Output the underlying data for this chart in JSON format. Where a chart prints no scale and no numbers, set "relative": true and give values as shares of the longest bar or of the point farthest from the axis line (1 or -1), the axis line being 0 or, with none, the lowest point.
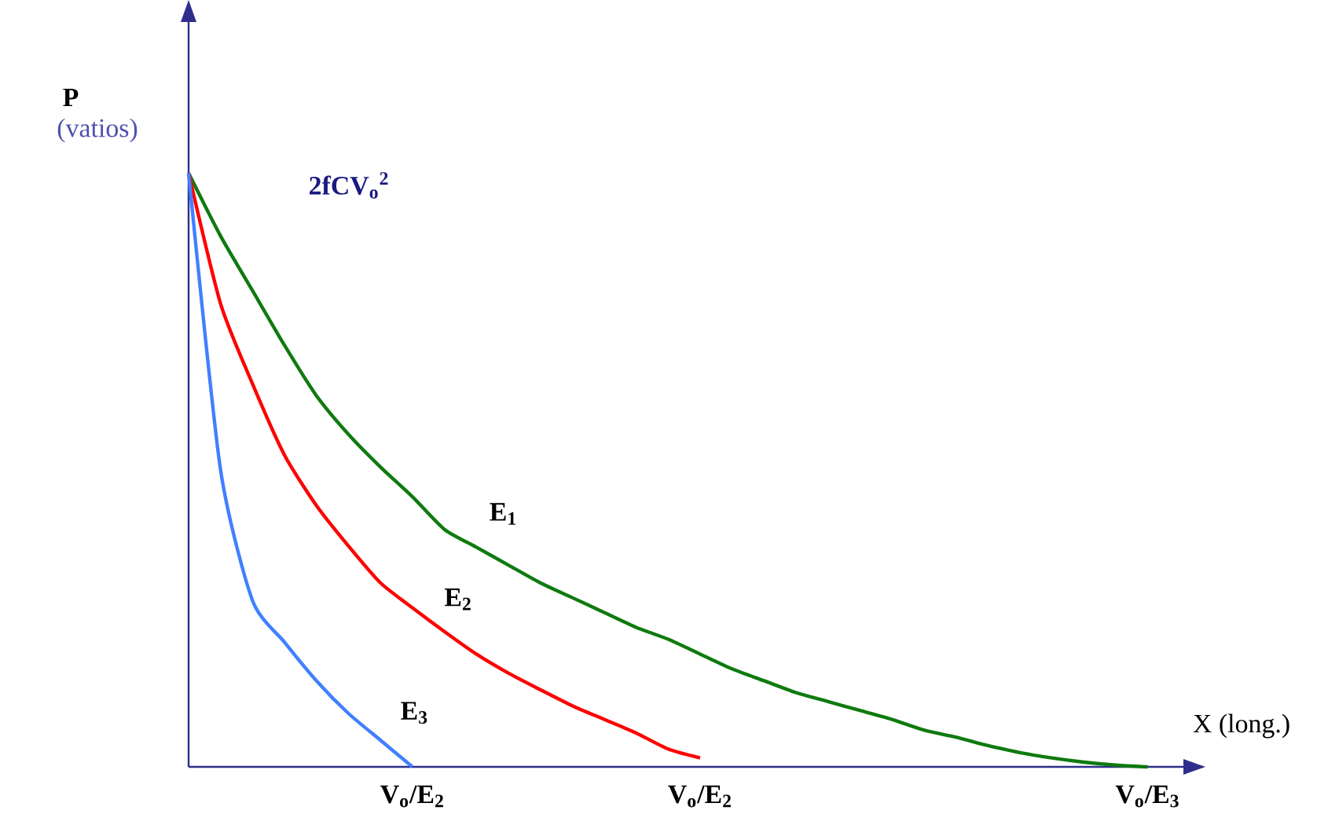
{
  "chart_data": {
    "type": "line",
    "relative": true,
    "xlabel": "X (long.)",
    "ylabel": "P",
    "annotations": [
      "(vatios)",
      "2fCV$_{o}$$^{2}$"
    ],
    "categories": [
      null,
      null,
      null,
      null,
      null,
      null,
      null,
      "V$_{o}$/E$_{2}$",
      null,
      null,
      null,
      null,
      null,
      null,
      null,
      null,
      "V$_{o}$/E$_{2}$",
      null,
      null,
      null,
      null,
      null,
      null,
      null,
      null,
      null,
      null,
      null,
      null,
      null,
      "V$_{o}$/E$_{3}$"
    ],
    "series": [
      {
        "name": "E$_{1}$",
        "color": "#0f7a0f",
        "values": [
          1,
          0.894,
          0.802,
          0.71,
          0.625,
          0.56,
          0.505,
          0.455,
          0.4,
          0.37,
          0.34,
          0.31,
          0.285,
          0.26,
          0.235,
          0.215,
          0.19,
          0.165,
          0.145,
          0.125,
          0.11,
          0.095,
          0.08,
          0.062,
          0.05,
          0.036,
          0.024,
          0.015,
          0.008,
          0.003,
          0
        ]
      },
      {
        "name": "E$_{2}$",
        "color": "#ff0000",
        "values": [
          1,
          0.78,
          0.645,
          0.525,
          0.44,
          0.372,
          0.31,
          0.268,
          0.228,
          0.19,
          0.158,
          0.13,
          0.103,
          0.08,
          0.057,
          0.03,
          0.015,
          null,
          null,
          null,
          null,
          null,
          null,
          null,
          null,
          null,
          null,
          null,
          null,
          null,
          null
        ]
      },
      {
        "name": "E$_{3}$",
        "color": "#4080ff",
        "values": [
          1,
          0.5,
          0.28,
          0.21,
          0.145,
          0.09,
          0.045,
          0,
          null,
          null,
          null,
          null,
          null,
          null,
          null,
          null,
          null,
          null,
          null,
          null,
          null,
          null,
          null,
          null,
          null,
          null,
          null,
          null,
          null,
          null,
          null
        ]
      }
    ]
  }
}
